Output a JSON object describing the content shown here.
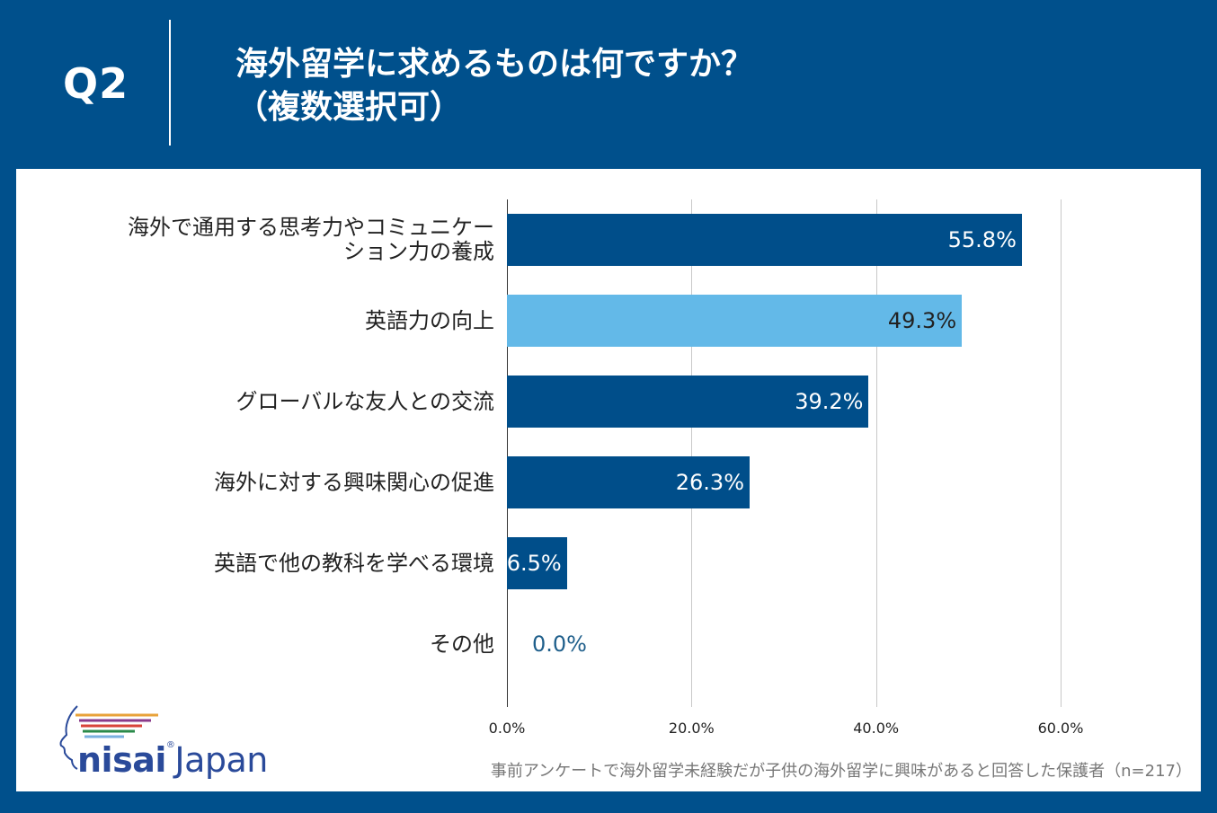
{
  "header": {
    "q_label": "Q2",
    "title_line1": "海外留学に求めるものは何ですか？",
    "title_line2": "（複数選択可）"
  },
  "colors": {
    "background": "#00508c",
    "bar_dark": "#004e8a",
    "bar_light": "#63b9e8",
    "zero_label": "#1f5f8b"
  },
  "chart_data": {
    "type": "bar",
    "orientation": "horizontal",
    "categories": [
      "海外で通用する思考力やコミュニケーション力の養成",
      "英語力の向上",
      "グローバルな友人との交流",
      "海外に対する興味関心の促進",
      "英語で他の教科を学べる環境",
      "その他"
    ],
    "category_lines": [
      [
        "海外で通用する思考力やコミュニケー",
        "ション力の養成"
      ],
      [
        "英語力の向上"
      ],
      [
        "グローバルな友人との交流"
      ],
      [
        "海外に対する興味関心の促進"
      ],
      [
        "英語で他の教科を学べる環境"
      ],
      [
        "その他"
      ]
    ],
    "values": [
      55.8,
      49.3,
      39.2,
      26.3,
      6.5,
      0.0
    ],
    "value_labels": [
      "55.8%",
      "49.3%",
      "39.2%",
      "26.3%",
      "6.5%",
      "0.0%"
    ],
    "highlight": [
      "dark",
      "light",
      "dark",
      "dark",
      "dark",
      "dark"
    ],
    "xlim": [
      0,
      60
    ],
    "x_ticks": [
      0,
      20,
      40,
      60
    ],
    "x_tick_labels": [
      "0.0%",
      "20.0%",
      "40.0%",
      "60.0%"
    ],
    "grid": true,
    "legend": "none"
  },
  "footer": {
    "logo_bold": "nisai",
    "logo_reg_mark": "®",
    "logo_light": "Japan",
    "footnote": "事前アンケートで海外留学未経験だが子供の海外留学に興味があると回答した保護者（n=217）"
  }
}
